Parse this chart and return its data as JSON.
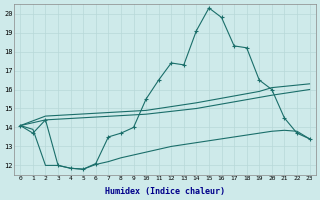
{
  "xlabel": "Humidex (Indice chaleur)",
  "ylabel": "",
  "xlim": [
    -0.5,
    23.5
  ],
  "ylim": [
    11.5,
    20.5
  ],
  "xticks": [
    0,
    1,
    2,
    3,
    4,
    5,
    6,
    7,
    8,
    9,
    10,
    11,
    12,
    13,
    14,
    15,
    16,
    17,
    18,
    19,
    20,
    21,
    22,
    23
  ],
  "yticks": [
    12,
    13,
    14,
    15,
    16,
    17,
    18,
    19,
    20
  ],
  "background_color": "#ceeaea",
  "grid_color": "#b8d8d8",
  "line_color": "#1a6e6a",
  "line1_x": [
    0,
    1,
    2,
    3,
    4,
    5,
    6,
    7,
    8,
    9,
    10,
    11,
    12,
    13,
    14,
    15,
    16,
    17,
    18,
    19,
    20,
    21,
    22,
    23
  ],
  "line1_y": [
    14.1,
    13.7,
    14.4,
    12.0,
    11.85,
    11.8,
    12.1,
    13.5,
    13.7,
    14.0,
    15.5,
    16.5,
    17.4,
    17.3,
    19.1,
    20.3,
    19.8,
    18.3,
    18.2,
    16.5,
    16.0,
    14.5,
    13.7,
    13.4
  ],
  "line2_x": [
    0,
    2,
    10,
    14,
    19,
    20,
    23
  ],
  "line2_y": [
    14.1,
    14.6,
    14.9,
    15.3,
    15.9,
    16.1,
    16.3
  ],
  "line3_x": [
    0,
    2,
    10,
    14,
    20,
    23
  ],
  "line3_y": [
    14.1,
    14.4,
    14.7,
    15.0,
    15.7,
    16.0
  ],
  "line4_x": [
    0,
    1,
    2,
    3,
    4,
    5,
    6,
    7,
    8,
    9,
    10,
    11,
    12,
    13,
    14,
    15,
    16,
    17,
    18,
    19,
    20,
    21,
    22,
    23
  ],
  "line4_y": [
    14.1,
    13.9,
    12.0,
    12.0,
    11.85,
    11.8,
    12.05,
    12.2,
    12.4,
    12.55,
    12.7,
    12.85,
    13.0,
    13.1,
    13.2,
    13.3,
    13.4,
    13.5,
    13.6,
    13.7,
    13.8,
    13.85,
    13.8,
    13.4
  ]
}
